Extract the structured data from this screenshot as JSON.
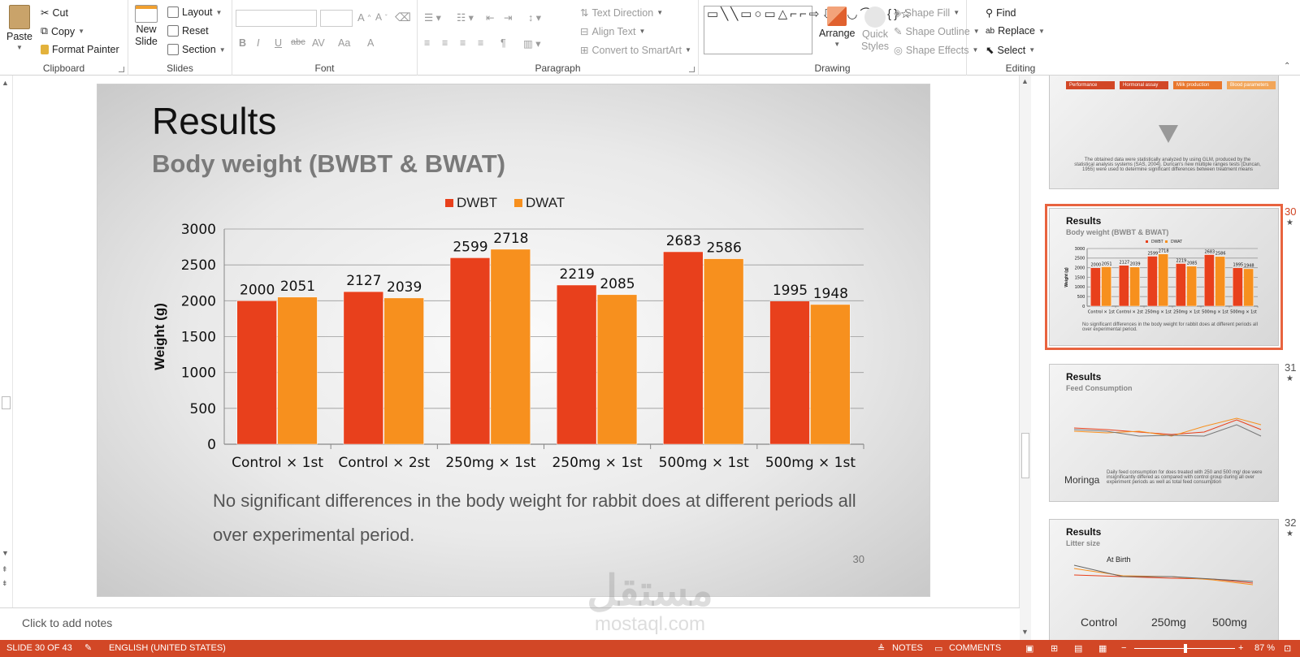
{
  "ribbon": {
    "clipboard": {
      "label": "Clipboard",
      "paste": "Paste",
      "cut": "Cut",
      "copy": "Copy",
      "format_painter": "Format Painter"
    },
    "slides": {
      "label": "Slides",
      "new_slide_1": "New",
      "new_slide_2": "Slide",
      "layout": "Layout",
      "reset": "Reset",
      "section": "Section"
    },
    "font": {
      "label": "Font",
      "bold": "B",
      "italic": "I",
      "underline": "U",
      "strike": "abc",
      "spacing": "AV",
      "case": "Aa",
      "color": "A"
    },
    "paragraph": {
      "label": "Paragraph",
      "text_direction": "Text Direction",
      "align_text": "Align Text",
      "smartart": "Convert to SmartArt"
    },
    "drawing": {
      "label": "Drawing",
      "arrange": "Arrange",
      "quick_styles_1": "Quick",
      "quick_styles_2": "Styles",
      "shape_fill": "Shape Fill",
      "shape_outline": "Shape Outline",
      "shape_effects": "Shape Effects"
    },
    "editing": {
      "label": "Editing",
      "find": "Find",
      "replace": "Replace",
      "select": "Select"
    }
  },
  "slide": {
    "title": "Results",
    "subtitle": "Body weight (BWBT & BWAT)",
    "body": "No significant differences in the body weight for rabbit does at different periods all over experimental period.",
    "number": "30"
  },
  "chart_data": {
    "type": "bar",
    "title": "",
    "xlabel": "",
    "ylabel": "Weight (g)",
    "ylim": [
      0,
      3000
    ],
    "yticks": [
      0,
      500,
      1000,
      1500,
      2000,
      2500,
      3000
    ],
    "grid": true,
    "legend_position": "top",
    "categories": [
      "Control × 1st",
      "Control × 2st",
      "250mg × 1st",
      "250mg × 1st",
      "500mg × 1st",
      "500mg × 1st"
    ],
    "series": [
      {
        "name": "DWBT",
        "color": "#e8401c",
        "values": [
          2000,
          2127,
          2599,
          2219,
          2683,
          1995
        ]
      },
      {
        "name": "DWAT",
        "color": "#f7901e",
        "values": [
          2051,
          2039,
          2718,
          2085,
          2586,
          1948
        ]
      }
    ]
  },
  "notes_placeholder": "Click to add notes",
  "thumbnails": [
    {
      "num": "",
      "title": "",
      "subtitle": "",
      "tabs": [
        "Performance",
        "Hormonal assay",
        "Milk production",
        "Blood parameters"
      ],
      "text": "The obtained data were statistically analyzed by using GLM, produced by the statistical analysis systems (SAS, 2004). Duncan's new multiple ranges tests (Duncan, 1955) were used to determine significant differences between treatment means"
    },
    {
      "num": "30",
      "title": "Results",
      "subtitle": "Body weight (BWBT & BWAT)",
      "text": "No significant differences in the body weight for rabbit does at different periods all over experimental period."
    },
    {
      "num": "31",
      "title": "Results",
      "subtitle": "Feed Consumption",
      "side": "Moringa",
      "text": "Daily feed consumption for does treated with 250 and 500 mg/ doe were insignificantly differed as compared with control group during all over experiment periods as well as total feed consumption"
    },
    {
      "num": "32",
      "title": "Results",
      "subtitle": "Litter size",
      "note": "At Birth",
      "labels": [
        "Control",
        "250mg",
        "500mg"
      ]
    }
  ],
  "status": {
    "slide_info": "SLIDE 30 OF 43",
    "language": "ENGLISH (UNITED STATES)",
    "notes": "NOTES",
    "comments": "COMMENTS",
    "zoom": "87 %"
  },
  "watermark": {
    "line1": "مستقل",
    "line2": "mostaql.com"
  }
}
